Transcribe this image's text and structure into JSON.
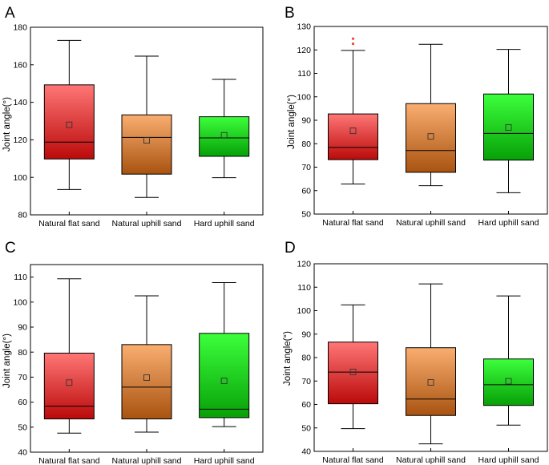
{
  "colors": {
    "red_top": "#ff7676",
    "red_bottom": "#bb0a0a",
    "orange_top": "#f9ae70",
    "orange_bottom": "#a95310",
    "green_top": "#3cff3c",
    "green_bottom": "#07a007",
    "outlier": "#e8493c",
    "axis": "#000000"
  },
  "chart_data": [
    {
      "type": "box",
      "panel_label": "A",
      "ylabel": "Joint angle(°)",
      "ylim": [
        80,
        180
      ],
      "yticks": [
        80,
        100,
        120,
        140,
        160,
        180
      ],
      "categories": [
        "Natural flat sand",
        "Natural uphill sand",
        "Hard uphill sand"
      ],
      "boxes": [
        {
          "whisker_low": 93.5,
          "q1": 109.8,
          "median": 118.8,
          "q3": 149.3,
          "whisker_high": 173.0,
          "mean": 128.0,
          "outliers": []
        },
        {
          "whisker_low": 89.3,
          "q1": 101.7,
          "median": 121.3,
          "q3": 133.3,
          "whisker_high": 164.6,
          "mean": 119.7,
          "outliers": []
        },
        {
          "whisker_low": 99.8,
          "q1": 111.2,
          "median": 121.0,
          "q3": 132.3,
          "whisker_high": 152.2,
          "mean": 122.4,
          "outliers": []
        }
      ]
    },
    {
      "type": "box",
      "panel_label": "B",
      "ylabel": "Joint angle(°)",
      "ylim": [
        50,
        130
      ],
      "yticks": [
        50,
        60,
        70,
        80,
        90,
        100,
        110,
        120,
        130
      ],
      "categories": [
        "Natural flat sand",
        "Natural uphill sand",
        "Hard uphill sand"
      ],
      "boxes": [
        {
          "whisker_low": 62.8,
          "q1": 73.2,
          "median": 78.4,
          "q3": 92.7,
          "whisker_high": 119.8,
          "mean": 85.5,
          "outliers": [
            122.6,
            124.8
          ]
        },
        {
          "whisker_low": 62.1,
          "q1": 67.8,
          "median": 77.1,
          "q3": 97.1,
          "whisker_high": 122.4,
          "mean": 83.1,
          "outliers": []
        },
        {
          "whisker_low": 59.1,
          "q1": 73.0,
          "median": 84.4,
          "q3": 101.2,
          "whisker_high": 120.2,
          "mean": 86.9,
          "outliers": []
        }
      ]
    },
    {
      "type": "box",
      "panel_label": "C",
      "ylabel": "Joint angle(°)",
      "ylim": [
        40,
        115
      ],
      "yticks": [
        40,
        50,
        60,
        70,
        80,
        90,
        100,
        110
      ],
      "categories": [
        "Natural flat sand",
        "Natural uphill sand",
        "Hard uphill sand"
      ],
      "boxes": [
        {
          "whisker_low": 47.6,
          "q1": 53.3,
          "median": 58.4,
          "q3": 79.6,
          "whisker_high": 109.3,
          "mean": 67.8,
          "outliers": []
        },
        {
          "whisker_low": 48.0,
          "q1": 53.3,
          "median": 66.0,
          "q3": 83.0,
          "whisker_high": 102.5,
          "mean": 69.8,
          "outliers": []
        },
        {
          "whisker_low": 50.2,
          "q1": 53.8,
          "median": 57.2,
          "q3": 87.5,
          "whisker_high": 107.8,
          "mean": 68.5,
          "outliers": []
        }
      ]
    },
    {
      "type": "box",
      "panel_label": "D",
      "ylabel": "Joint angle(°)",
      "ylim": [
        40,
        120
      ],
      "yticks": [
        40,
        50,
        60,
        70,
        80,
        90,
        100,
        110,
        120
      ],
      "categories": [
        "Natural flat sand",
        "Natural uphill sand",
        "Hard uphill sand"
      ],
      "boxes": [
        {
          "whisker_low": 49.7,
          "q1": 60.3,
          "median": 73.8,
          "q3": 86.6,
          "whisker_high": 102.5,
          "mean": 73.9,
          "outliers": []
        },
        {
          "whisker_low": 43.2,
          "q1": 55.3,
          "median": 62.3,
          "q3": 84.2,
          "whisker_high": 111.4,
          "mean": 69.4,
          "outliers": []
        },
        {
          "whisker_low": 51.2,
          "q1": 59.6,
          "median": 68.4,
          "q3": 79.4,
          "whisker_high": 106.3,
          "mean": 69.9,
          "outliers": []
        }
      ]
    }
  ]
}
